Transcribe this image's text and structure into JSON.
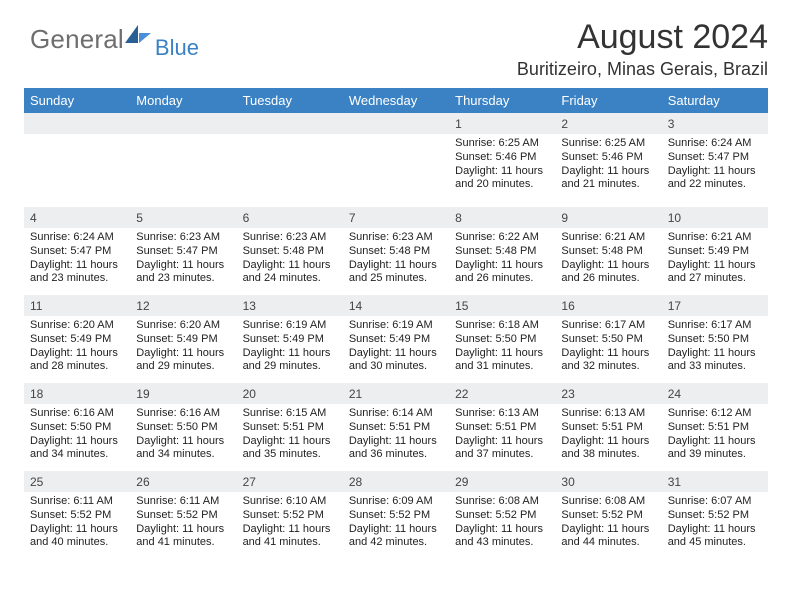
{
  "brand": {
    "part1": "General",
    "part2": "Blue"
  },
  "title": "August 2024",
  "location": "Buritizeiro, Minas Gerais, Brazil",
  "colors": {
    "accent": "#3b82c4",
    "header_bg": "#3b82c4",
    "day_bar": "#eceef0",
    "text": "#222222",
    "muted": "#6e6e6e"
  },
  "weekdays": [
    "Sunday",
    "Monday",
    "Tuesday",
    "Wednesday",
    "Thursday",
    "Friday",
    "Saturday"
  ],
  "weeks": [
    [
      null,
      null,
      null,
      null,
      {
        "n": "1",
        "sunrise": "6:25 AM",
        "sunset": "5:46 PM",
        "dl": "Daylight: 11 hours and 20 minutes."
      },
      {
        "n": "2",
        "sunrise": "6:25 AM",
        "sunset": "5:46 PM",
        "dl": "Daylight: 11 hours and 21 minutes."
      },
      {
        "n": "3",
        "sunrise": "6:24 AM",
        "sunset": "5:47 PM",
        "dl": "Daylight: 11 hours and 22 minutes."
      }
    ],
    [
      {
        "n": "4",
        "sunrise": "6:24 AM",
        "sunset": "5:47 PM",
        "dl": "Daylight: 11 hours and 23 minutes."
      },
      {
        "n": "5",
        "sunrise": "6:23 AM",
        "sunset": "5:47 PM",
        "dl": "Daylight: 11 hours and 23 minutes."
      },
      {
        "n": "6",
        "sunrise": "6:23 AM",
        "sunset": "5:48 PM",
        "dl": "Daylight: 11 hours and 24 minutes."
      },
      {
        "n": "7",
        "sunrise": "6:23 AM",
        "sunset": "5:48 PM",
        "dl": "Daylight: 11 hours and 25 minutes."
      },
      {
        "n": "8",
        "sunrise": "6:22 AM",
        "sunset": "5:48 PM",
        "dl": "Daylight: 11 hours and 26 minutes."
      },
      {
        "n": "9",
        "sunrise": "6:21 AM",
        "sunset": "5:48 PM",
        "dl": "Daylight: 11 hours and 26 minutes."
      },
      {
        "n": "10",
        "sunrise": "6:21 AM",
        "sunset": "5:49 PM",
        "dl": "Daylight: 11 hours and 27 minutes."
      }
    ],
    [
      {
        "n": "11",
        "sunrise": "6:20 AM",
        "sunset": "5:49 PM",
        "dl": "Daylight: 11 hours and 28 minutes."
      },
      {
        "n": "12",
        "sunrise": "6:20 AM",
        "sunset": "5:49 PM",
        "dl": "Daylight: 11 hours and 29 minutes."
      },
      {
        "n": "13",
        "sunrise": "6:19 AM",
        "sunset": "5:49 PM",
        "dl": "Daylight: 11 hours and 29 minutes."
      },
      {
        "n": "14",
        "sunrise": "6:19 AM",
        "sunset": "5:49 PM",
        "dl": "Daylight: 11 hours and 30 minutes."
      },
      {
        "n": "15",
        "sunrise": "6:18 AM",
        "sunset": "5:50 PM",
        "dl": "Daylight: 11 hours and 31 minutes."
      },
      {
        "n": "16",
        "sunrise": "6:17 AM",
        "sunset": "5:50 PM",
        "dl": "Daylight: 11 hours and 32 minutes."
      },
      {
        "n": "17",
        "sunrise": "6:17 AM",
        "sunset": "5:50 PM",
        "dl": "Daylight: 11 hours and 33 minutes."
      }
    ],
    [
      {
        "n": "18",
        "sunrise": "6:16 AM",
        "sunset": "5:50 PM",
        "dl": "Daylight: 11 hours and 34 minutes."
      },
      {
        "n": "19",
        "sunrise": "6:16 AM",
        "sunset": "5:50 PM",
        "dl": "Daylight: 11 hours and 34 minutes."
      },
      {
        "n": "20",
        "sunrise": "6:15 AM",
        "sunset": "5:51 PM",
        "dl": "Daylight: 11 hours and 35 minutes."
      },
      {
        "n": "21",
        "sunrise": "6:14 AM",
        "sunset": "5:51 PM",
        "dl": "Daylight: 11 hours and 36 minutes."
      },
      {
        "n": "22",
        "sunrise": "6:13 AM",
        "sunset": "5:51 PM",
        "dl": "Daylight: 11 hours and 37 minutes."
      },
      {
        "n": "23",
        "sunrise": "6:13 AM",
        "sunset": "5:51 PM",
        "dl": "Daylight: 11 hours and 38 minutes."
      },
      {
        "n": "24",
        "sunrise": "6:12 AM",
        "sunset": "5:51 PM",
        "dl": "Daylight: 11 hours and 39 minutes."
      }
    ],
    [
      {
        "n": "25",
        "sunrise": "6:11 AM",
        "sunset": "5:52 PM",
        "dl": "Daylight: 11 hours and 40 minutes."
      },
      {
        "n": "26",
        "sunrise": "6:11 AM",
        "sunset": "5:52 PM",
        "dl": "Daylight: 11 hours and 41 minutes."
      },
      {
        "n": "27",
        "sunrise": "6:10 AM",
        "sunset": "5:52 PM",
        "dl": "Daylight: 11 hours and 41 minutes."
      },
      {
        "n": "28",
        "sunrise": "6:09 AM",
        "sunset": "5:52 PM",
        "dl": "Daylight: 11 hours and 42 minutes."
      },
      {
        "n": "29",
        "sunrise": "6:08 AM",
        "sunset": "5:52 PM",
        "dl": "Daylight: 11 hours and 43 minutes."
      },
      {
        "n": "30",
        "sunrise": "6:08 AM",
        "sunset": "5:52 PM",
        "dl": "Daylight: 11 hours and 44 minutes."
      },
      {
        "n": "31",
        "sunrise": "6:07 AM",
        "sunset": "5:52 PM",
        "dl": "Daylight: 11 hours and 45 minutes."
      }
    ]
  ],
  "labels": {
    "sunrise": "Sunrise: ",
    "sunset": "Sunset: "
  }
}
